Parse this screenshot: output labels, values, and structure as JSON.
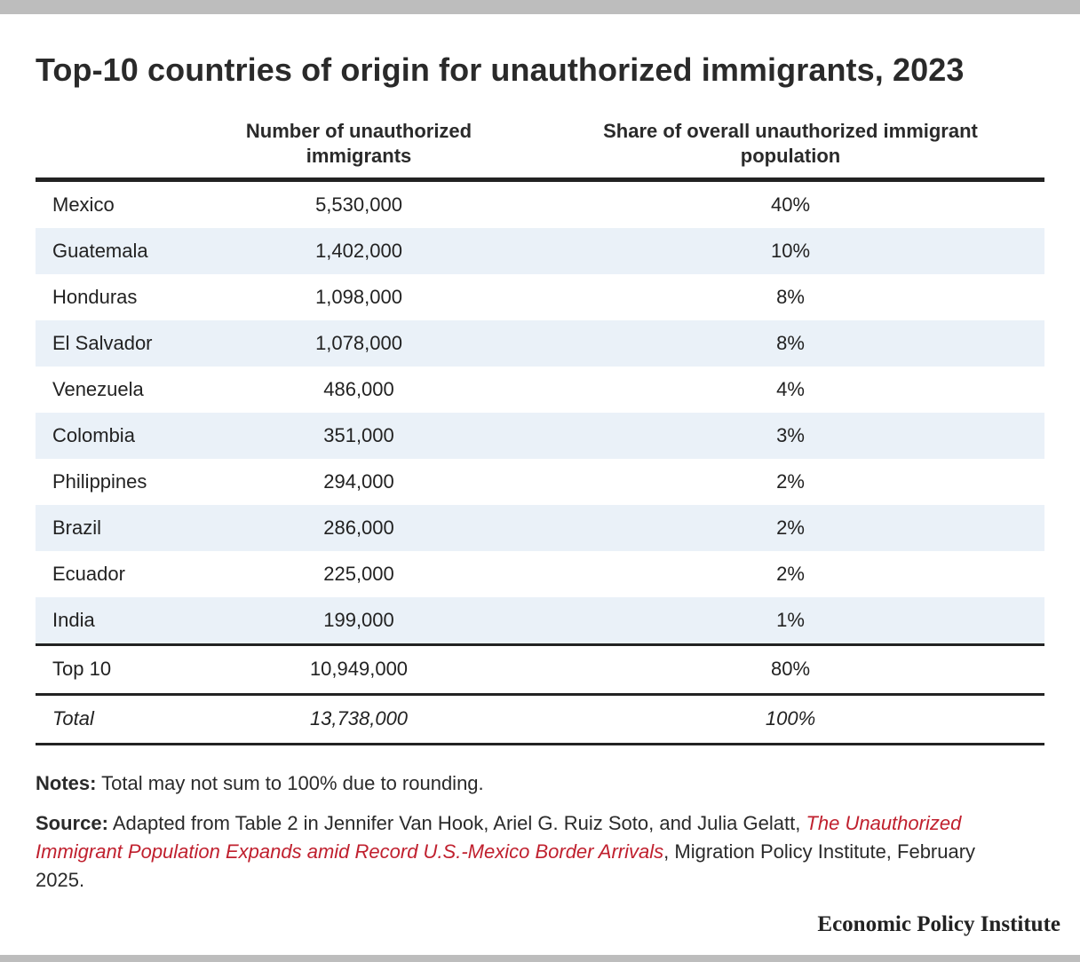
{
  "title": "Top-10 countries of origin for unauthorized immigrants, 2023",
  "colors": {
    "row_shade": "#eaf1f8",
    "link": "#c0202e",
    "rule": "#222222",
    "frame_bar": "#bdbdbd"
  },
  "chart_data": {
    "type": "table",
    "title": "Top-10 countries of origin for unauthorized immigrants, 2023",
    "columns": [
      "",
      "Number of unauthorized immigrants",
      "Share of overall unauthorized immigrant population"
    ],
    "header": {
      "num_line1": "Number of unauthorized",
      "num_line2": "immigrants",
      "share_line1": "Share of overall unauthorized immigrant",
      "share_line2": "population"
    },
    "rows": [
      {
        "country": "Mexico",
        "number": "5,530,000",
        "share": "40%"
      },
      {
        "country": "Guatemala",
        "number": "1,402,000",
        "share": "10%"
      },
      {
        "country": "Honduras",
        "number": "1,098,000",
        "share": "8%"
      },
      {
        "country": "El Salvador",
        "number": "1,078,000",
        "share": "8%"
      },
      {
        "country": "Venezuela",
        "number": "486,000",
        "share": "4%"
      },
      {
        "country": "Colombia",
        "number": "351,000",
        "share": "3%"
      },
      {
        "country": "Philippines",
        "number": "294,000",
        "share": "2%"
      },
      {
        "country": "Brazil",
        "number": "286,000",
        "share": "2%"
      },
      {
        "country": "Ecuador",
        "number": "225,000",
        "share": "2%"
      },
      {
        "country": "India",
        "number": "199,000",
        "share": "1%"
      }
    ],
    "summary": {
      "label": "Top 10",
      "number": "10,949,000",
      "share": "80%"
    },
    "total": {
      "label": "Total",
      "number": "13,738,000",
      "share": "100%"
    }
  },
  "notes": {
    "label": "Notes:",
    "text": " Total may not sum to 100% due to rounding."
  },
  "source": {
    "label": "Source:",
    "text_before": " Adapted from Table 2 in Jennifer Van Hook, Ariel G. Ruiz Soto, and Julia Gelatt, ",
    "link_text": "The Unauthorized Immigrant Population Expands amid Record U.S.-Mexico Border Arrivals",
    "text_after": ", Migration Policy Institute, February 2025."
  },
  "brand": "Economic Policy Institute"
}
